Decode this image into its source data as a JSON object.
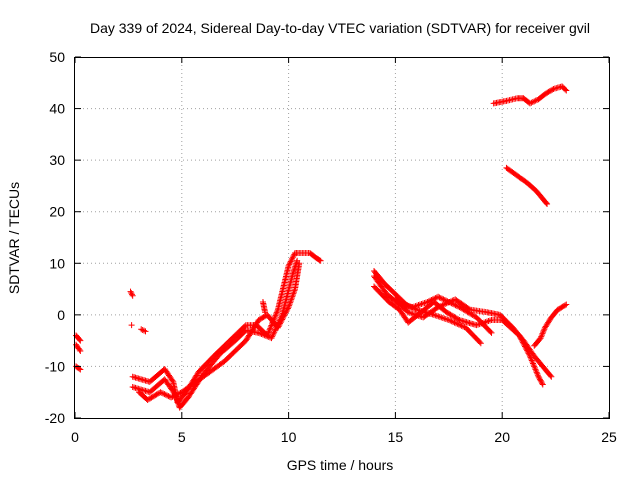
{
  "chart_data": {
    "type": "scatter",
    "title": "Day 339 of 2024, Sidereal Day-to-day VTEC variation (SDTVAR) for receiver gvil",
    "xlabel": "GPS time / hours",
    "ylabel": "SDTVAR / TECUs",
    "xlim": [
      0,
      25
    ],
    "ylim": [
      -20,
      50
    ],
    "xticks": [
      0,
      5,
      10,
      15,
      20,
      25
    ],
    "yticks": [
      -20,
      -10,
      0,
      10,
      20,
      30,
      40,
      50
    ],
    "grid": true,
    "marker": "+",
    "color": "#ff0000",
    "segments": [
      {
        "points": [
          [
            0.05,
            -4.0
          ],
          [
            0.25,
            -5.0
          ]
        ]
      },
      {
        "points": [
          [
            0.05,
            -5.8
          ],
          [
            0.25,
            -7.0
          ]
        ]
      },
      {
        "points": [
          [
            0.05,
            -10.0
          ],
          [
            0.25,
            -10.6
          ]
        ]
      },
      {
        "points": [
          [
            2.6,
            4.5
          ],
          [
            2.7,
            3.7
          ]
        ]
      },
      {
        "points": [
          [
            2.65,
            -2.0
          ]
        ]
      },
      {
        "points": [
          [
            3.1,
            -2.8
          ],
          [
            3.3,
            -3.2
          ]
        ]
      },
      {
        "points": [
          [
            2.7,
            -12.0
          ],
          [
            3.5,
            -13.0
          ],
          [
            4.2,
            -10.5
          ],
          [
            4.6,
            -13.0
          ],
          [
            4.8,
            -17.0
          ],
          [
            5.2,
            -15.0
          ],
          [
            5.8,
            -11.0
          ],
          [
            6.5,
            -8.0
          ],
          [
            7.0,
            -6.0
          ],
          [
            7.5,
            -4.0
          ],
          [
            8.0,
            -2.0
          ],
          [
            8.5,
            -2.0
          ],
          [
            9.0,
            -4.0
          ],
          [
            9.5,
            1.0
          ],
          [
            10.0,
            9.5
          ],
          [
            10.3,
            12.0
          ],
          [
            10.5,
            12.0
          ],
          [
            11.0,
            12.0
          ],
          [
            11.3,
            11.0
          ],
          [
            11.5,
            10.5
          ]
        ]
      },
      {
        "points": [
          [
            2.7,
            -14.0
          ],
          [
            3.5,
            -15.0
          ],
          [
            4.2,
            -12.5
          ],
          [
            4.7,
            -15.5
          ],
          [
            4.9,
            -18.0
          ],
          [
            5.3,
            -16.0
          ],
          [
            6.0,
            -11.5
          ],
          [
            6.8,
            -7.5
          ],
          [
            7.5,
            -5.0
          ],
          [
            8.0,
            -3.0
          ],
          [
            8.6,
            -3.5
          ],
          [
            9.2,
            -4.5
          ],
          [
            9.7,
            0.0
          ],
          [
            10.2,
            8.0
          ],
          [
            10.4,
            10.5
          ]
        ]
      },
      {
        "points": [
          [
            3.0,
            -15.0
          ],
          [
            3.4,
            -16.5
          ],
          [
            4.0,
            -15.0
          ],
          [
            4.5,
            -16.0
          ],
          [
            5.0,
            -15.0
          ],
          [
            6.0,
            -12.0
          ],
          [
            7.0,
            -9.0
          ],
          [
            8.0,
            -5.0
          ],
          [
            8.6,
            -1.0
          ],
          [
            9.0,
            0.0
          ],
          [
            9.5,
            -2.5
          ],
          [
            10.0,
            1.5
          ],
          [
            10.3,
            5.0
          ],
          [
            10.5,
            10.0
          ]
        ]
      },
      {
        "points": [
          [
            8.8,
            2.5
          ],
          [
            8.9,
            0.5
          ]
        ]
      },
      {
        "points": [
          [
            14.0,
            8.5
          ],
          [
            14.5,
            6.0
          ],
          [
            15.0,
            4.0
          ],
          [
            15.5,
            2.0
          ],
          [
            16.0,
            1.0
          ],
          [
            16.8,
            0.0
          ],
          [
            17.5,
            -1.0
          ],
          [
            18.3,
            -2.5
          ],
          [
            19.0,
            -5.5
          ]
        ]
      },
      {
        "points": [
          [
            14.0,
            7.5
          ],
          [
            14.6,
            4.0
          ],
          [
            15.2,
            2.0
          ],
          [
            15.8,
            1.5
          ],
          [
            16.5,
            2.5
          ],
          [
            17.0,
            3.5
          ],
          [
            17.5,
            2.5
          ],
          [
            18.0,
            1.5
          ],
          [
            18.8,
            -0.5
          ],
          [
            19.5,
            -3.5
          ]
        ]
      },
      {
        "points": [
          [
            14.0,
            5.5
          ],
          [
            14.7,
            2.5
          ],
          [
            15.2,
            1.0
          ],
          [
            15.6,
            -1.5
          ],
          [
            16.2,
            0.5
          ],
          [
            16.8,
            2.5
          ],
          [
            17.4,
            0.5
          ],
          [
            18.0,
            -1.0
          ],
          [
            18.8,
            -2.0
          ],
          [
            19.5,
            -1.0
          ],
          [
            20.0,
            -1.0
          ],
          [
            20.8,
            -4.0
          ],
          [
            21.3,
            -8.0
          ],
          [
            21.7,
            -12.0
          ],
          [
            21.9,
            -13.5
          ]
        ]
      },
      {
        "points": [
          [
            15.0,
            3.0
          ],
          [
            15.6,
            0.5
          ],
          [
            16.3,
            -0.5
          ],
          [
            17.0,
            1.5
          ],
          [
            17.8,
            3.0
          ],
          [
            18.5,
            1.0
          ],
          [
            19.3,
            0.5
          ],
          [
            19.9,
            0.0
          ],
          [
            20.5,
            -2.5
          ],
          [
            21.0,
            -5.0
          ],
          [
            21.5,
            -8.0
          ],
          [
            22.0,
            -10.5
          ],
          [
            22.3,
            -12.0
          ]
        ]
      },
      {
        "points": [
          [
            21.5,
            -6.0
          ],
          [
            21.8,
            -4.5
          ],
          [
            22.0,
            -2.5
          ],
          [
            22.3,
            -0.5
          ],
          [
            22.6,
            1.0
          ],
          [
            23.0,
            2.0
          ]
        ]
      },
      {
        "points": [
          [
            20.2,
            28.5
          ],
          [
            20.7,
            27.0
          ],
          [
            21.2,
            25.5
          ],
          [
            21.6,
            24.0
          ],
          [
            22.0,
            22.0
          ],
          [
            22.1,
            21.5
          ]
        ]
      },
      {
        "points": [
          [
            19.6,
            41.0
          ],
          [
            20.2,
            41.5
          ],
          [
            20.7,
            42.0
          ],
          [
            21.0,
            42.0
          ],
          [
            21.3,
            41.0
          ],
          [
            21.7,
            41.8
          ],
          [
            22.0,
            42.8
          ],
          [
            22.4,
            43.8
          ],
          [
            22.8,
            44.3
          ],
          [
            23.0,
            43.5
          ]
        ]
      }
    ]
  }
}
